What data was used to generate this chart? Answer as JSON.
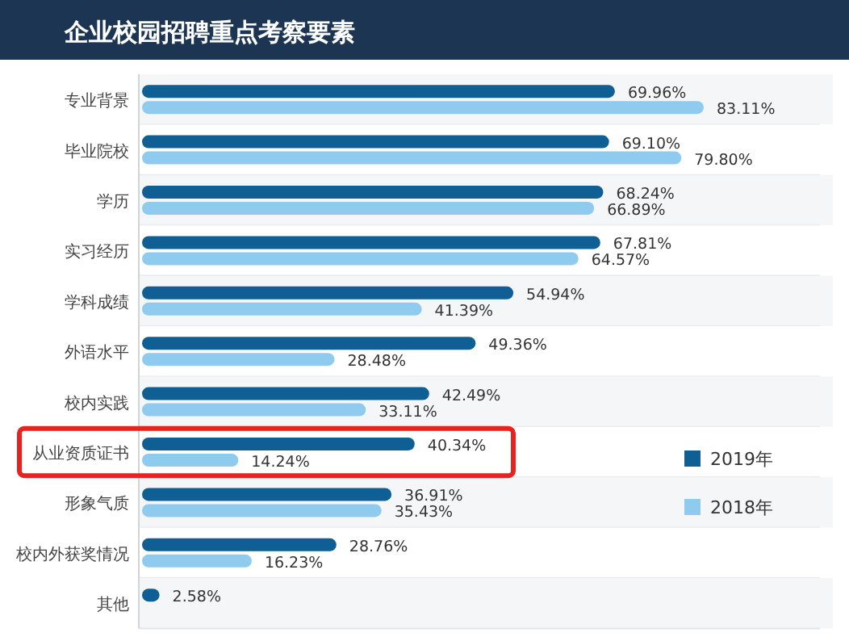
{
  "chart_data": {
    "type": "bar",
    "orientation": "horizontal",
    "title": "企业校园招聘重点考察要素",
    "categories": [
      "专业背景",
      "毕业院校",
      "学历",
      "实习经历",
      "学科成绩",
      "外语水平",
      "校内实践",
      "从业资质证书",
      "形象气质",
      "校内外获奖情况",
      "其他"
    ],
    "series": [
      {
        "name": "2019年",
        "color": "#0f5e94",
        "values": [
          69.96,
          69.1,
          68.24,
          67.81,
          54.94,
          49.36,
          42.49,
          40.34,
          36.91,
          28.76,
          2.58
        ],
        "value_labels": [
          "69.96%",
          "69.10%",
          "68.24%",
          "67.81%",
          "54.94%",
          "49.36%",
          "42.49%",
          "40.34%",
          "36.91%",
          "28.76%",
          "2.58%"
        ]
      },
      {
        "name": "2018年",
        "color": "#8fcbef",
        "values": [
          83.11,
          79.8,
          66.89,
          64.57,
          41.39,
          28.48,
          33.11,
          14.24,
          35.43,
          16.23,
          null
        ],
        "value_labels": [
          "83.11%",
          "79.80%",
          "66.89%",
          "64.57%",
          "41.39%",
          "28.48%",
          "33.11%",
          "14.24%",
          "35.43%",
          "16.23%",
          null
        ]
      }
    ],
    "legend": "right"
  }
}
